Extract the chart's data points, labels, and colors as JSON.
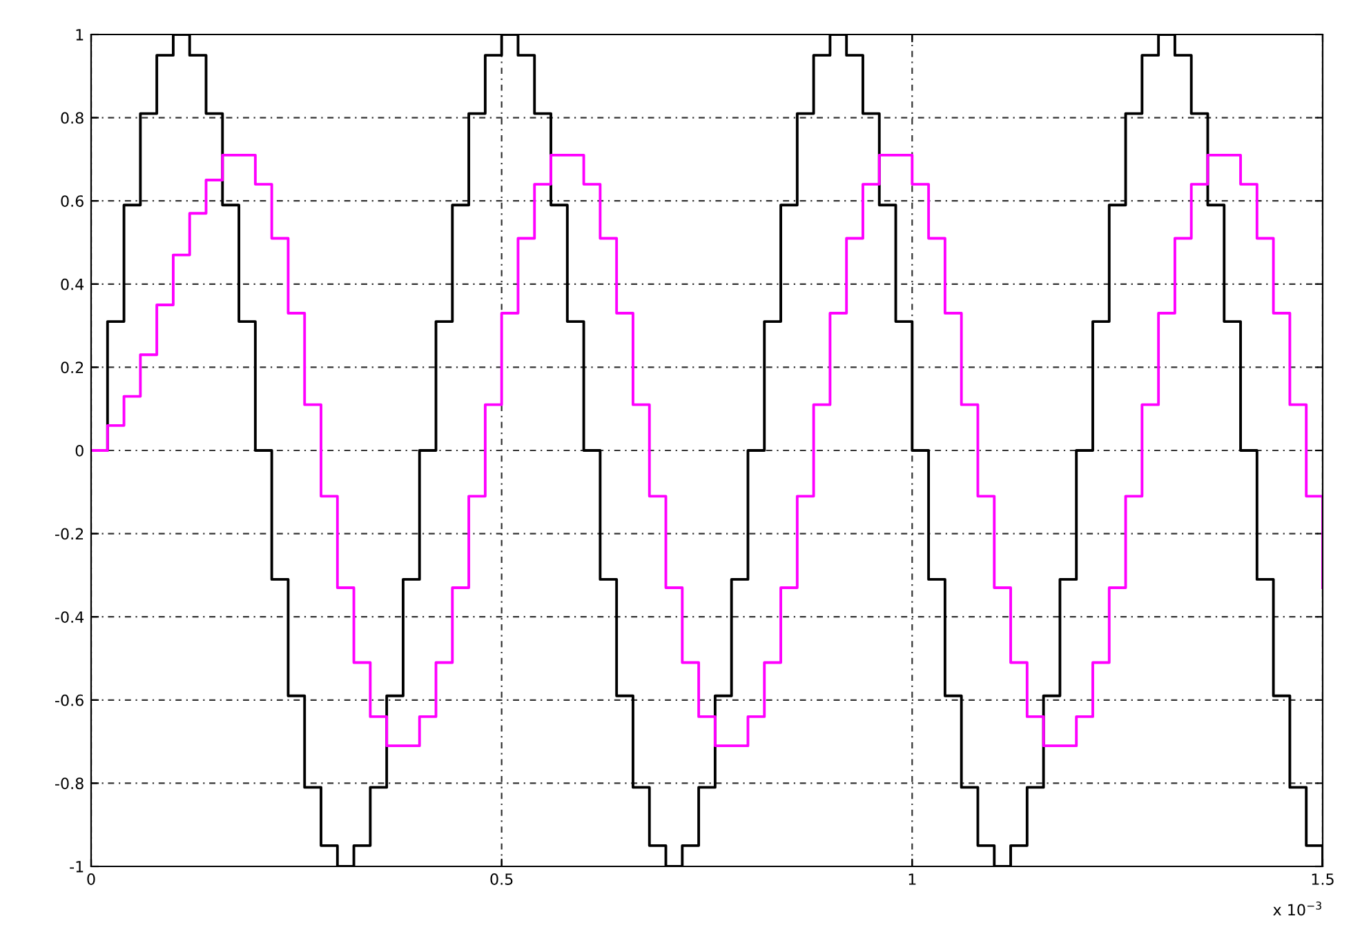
{
  "chart_data": {
    "type": "step",
    "x": [
      0,
      0.02,
      0.04,
      0.06,
      0.08,
      0.1,
      0.12,
      0.14,
      0.16,
      0.18,
      0.2,
      0.22,
      0.24,
      0.26,
      0.28,
      0.3,
      0.32,
      0.34,
      0.36,
      0.38,
      0.4,
      0.42,
      0.44,
      0.46,
      0.48,
      0.5,
      0.52,
      0.54,
      0.56,
      0.58,
      0.6,
      0.62,
      0.64,
      0.66,
      0.68,
      0.7,
      0.72,
      0.74,
      0.76,
      0.78,
      0.8,
      0.82,
      0.84,
      0.86,
      0.88,
      0.9,
      0.92,
      0.94,
      0.96,
      0.98,
      1,
      1.02,
      1.04,
      1.06,
      1.08,
      1.1,
      1.12,
      1.14,
      1.16,
      1.18,
      1.2,
      1.22,
      1.24,
      1.26,
      1.28,
      1.3,
      1.32,
      1.34,
      1.36,
      1.38,
      1.4,
      1.42,
      1.44,
      1.46,
      1.48,
      1.5
    ],
    "series": [
      {
        "color": "#000000",
        "values": [
          0,
          0.31,
          0.59,
          0.81,
          0.95,
          1,
          0.95,
          0.81,
          0.59,
          0.31,
          0,
          -0.31,
          -0.59,
          -0.81,
          -0.95,
          -1,
          -0.95,
          -0.81,
          -0.59,
          -0.31,
          0,
          0.31,
          0.59,
          0.81,
          0.95,
          1,
          0.95,
          0.81,
          0.59,
          0.31,
          0,
          -0.31,
          -0.59,
          -0.81,
          -0.95,
          -1,
          -0.95,
          -0.81,
          -0.59,
          -0.31,
          0,
          0.31,
          0.59,
          0.81,
          0.95,
          1,
          0.95,
          0.81,
          0.59,
          0.31,
          0,
          -0.31,
          -0.59,
          -0.81,
          -0.95,
          -1,
          -0.95,
          -0.81,
          -0.59,
          -0.31,
          0,
          0.31,
          0.59,
          0.81,
          0.95,
          1,
          0.95,
          0.81,
          0.59,
          0.31,
          0,
          -0.31,
          -0.59,
          -0.81,
          -0.95,
          -1
        ]
      },
      {
        "color": "#ff00ff",
        "values": [
          0,
          0.06,
          0.13,
          0.23,
          0.35,
          0.47,
          0.57,
          0.65,
          0.71,
          0.71,
          0.64,
          0.51,
          0.33,
          0.11,
          -0.11,
          -0.33,
          -0.51,
          -0.64,
          -0.71,
          -0.71,
          -0.64,
          -0.51,
          -0.33,
          -0.11,
          0.11,
          0.33,
          0.51,
          0.64,
          0.71,
          0.71,
          0.64,
          0.51,
          0.33,
          0.11,
          -0.11,
          -0.33,
          -0.51,
          -0.64,
          -0.71,
          -0.71,
          -0.64,
          -0.51,
          -0.33,
          -0.11,
          0.11,
          0.33,
          0.51,
          0.64,
          0.71,
          0.71,
          0.64,
          0.51,
          0.33,
          0.11,
          -0.11,
          -0.33,
          -0.51,
          -0.64,
          -0.71,
          -0.71,
          -0.64,
          -0.51,
          -0.33,
          -0.11,
          0.11,
          0.33,
          0.51,
          0.64,
          0.71,
          0.71,
          0.64,
          0.51,
          0.33,
          0.11,
          -0.11,
          -0.33
        ]
      }
    ],
    "xlim": [
      0,
      1.5
    ],
    "xticks": [
      0,
      0.5,
      1,
      1.5
    ],
    "ylim": [
      -1,
      1
    ],
    "yticks": [
      -1,
      -0.8,
      -0.6,
      -0.4,
      -0.2,
      0,
      0.2,
      0.4,
      0.6,
      0.8,
      1
    ],
    "grid": true,
    "annotations": [
      "x 10$^{−3}$"
    ]
  }
}
